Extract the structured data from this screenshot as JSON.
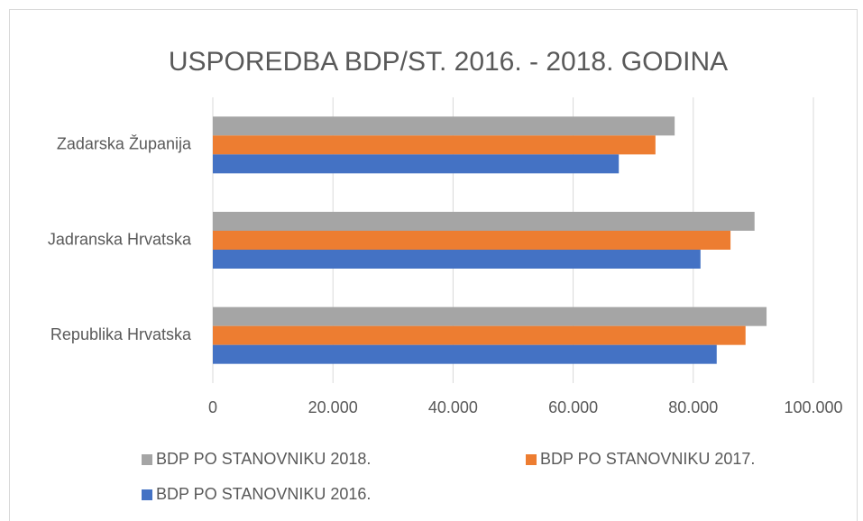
{
  "chart_data": {
    "type": "barh",
    "title": "USPOREDBA BDP/ST. 2016. - 2018. GODINA",
    "categories": [
      "Zadarska Županija",
      "Jadranska Hrvatska",
      "Republika Hrvatska"
    ],
    "series": [
      {
        "name": "BDP PO STANOVNIKU 2018.",
        "color": "#a5a5a5",
        "values": [
          76900,
          90200,
          92200
        ]
      },
      {
        "name": "BDP PO STANOVNIKU 2017.",
        "color": "#ed7d31",
        "values": [
          73700,
          86200,
          88700
        ]
      },
      {
        "name": "BDP PO STANOVNIKU 2016.",
        "color": "#4472c4",
        "values": [
          67600,
          81200,
          83900
        ]
      }
    ],
    "xlim": [
      0,
      100000
    ],
    "xticks": [
      0,
      {
        "value": 20000,
        "label": "20.000"
      },
      {
        "value": 40000,
        "label": "40.000"
      },
      {
        "value": 60000,
        "label": "60.000"
      },
      {
        "value": 80000,
        "label": "80.000"
      },
      {
        "value": 100000,
        "label": "100.000"
      }
    ],
    "grid": true,
    "legend": "bottom"
  }
}
